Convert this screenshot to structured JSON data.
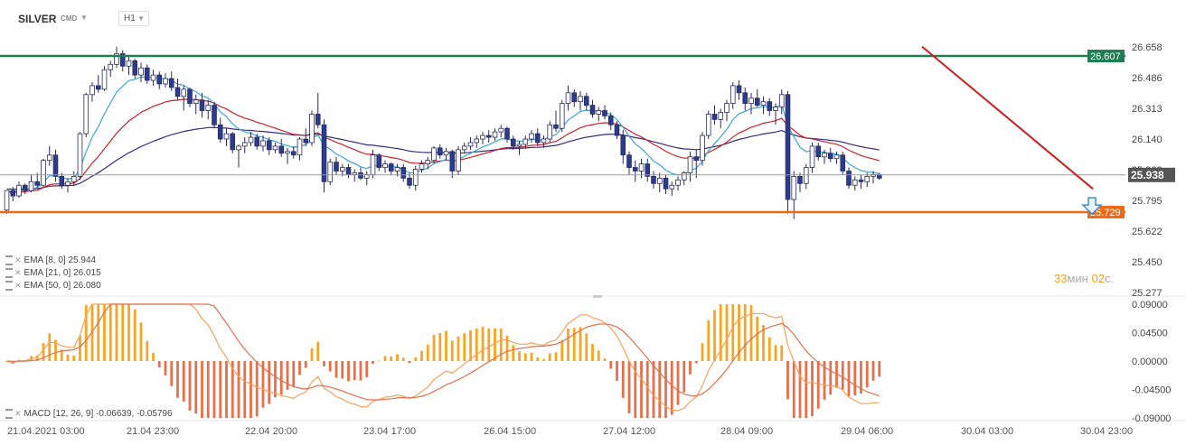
{
  "toolbar": {
    "symbol": "SILVER",
    "market": "CMD",
    "timeframe": "H1"
  },
  "colors": {
    "bull": "#ffffff",
    "bear": "#2b3c8f",
    "resistance": "#1e7f55",
    "support": "#f06a14",
    "trend": "#c81e1e",
    "ema8": "#3aa6d9",
    "ema21": "#c8232c",
    "ema50": "#3c2a7a",
    "macd_pos": "#f5a623",
    "macd_neg": "#e5704b",
    "price_line": "#999999"
  },
  "levels": {
    "resistance": "26.607",
    "support": "25.729",
    "current": "25.938"
  },
  "indicators": [
    {
      "name": "EMA",
      "params": "[8, 0]",
      "value": "25.944"
    },
    {
      "name": "EMA",
      "params": "[21, 0]",
      "value": "26.015"
    },
    {
      "name": "EMA",
      "params": "[50, 0]",
      "value": "26.080"
    }
  ],
  "macd_label": {
    "name": "MACD",
    "params": "[12, 26, 9]",
    "values": "-0.06639, -0.05796"
  },
  "timer": {
    "minutes": "33",
    "min_unit": "мин",
    "seconds": "02",
    "sec_unit": "с."
  },
  "chart_data": [
    {
      "type": "candlestick",
      "title": "SILVER H1",
      "price_axis_ticks": [
        "26.658",
        "26.486",
        "26.313",
        "26.140",
        "25.968",
        "25.795",
        "25.622",
        "25.450",
        "25.277"
      ],
      "ylim": [
        25.277,
        26.658
      ],
      "time_axis_ticks": [
        "21.04.2021  03:00",
        "21.04  23:00",
        "22.04  20:00",
        "23.04  17:00",
        "26.04  15:00",
        "27.04  12:00",
        "28.04  09:00",
        "29.04  06:00",
        "30.04  03:00",
        "30.04  23:00"
      ],
      "horizontal_levels": [
        26.607,
        25.729
      ],
      "current_price": 25.938,
      "trendline": {
        "from": [
          150,
          26.66
        ],
        "to": [
          178,
          25.86
        ]
      },
      "signal": "down",
      "candles": [
        [
          25.74,
          25.85,
          25.72,
          25.85
        ],
        [
          25.85,
          25.87,
          25.79,
          25.82
        ],
        [
          25.82,
          25.9,
          25.81,
          25.88
        ],
        [
          25.88,
          25.89,
          25.83,
          25.85
        ],
        [
          25.85,
          25.94,
          25.84,
          25.9
        ],
        [
          25.9,
          25.95,
          25.86,
          25.88
        ],
        [
          25.88,
          26.03,
          25.87,
          26.02
        ],
        [
          26.02,
          26.1,
          25.99,
          26.05
        ],
        [
          26.05,
          26.08,
          25.9,
          25.93
        ],
        [
          25.93,
          25.95,
          25.86,
          25.88
        ],
        [
          25.88,
          25.92,
          25.84,
          25.9
        ],
        [
          25.9,
          25.96,
          25.88,
          25.93
        ],
        [
          25.93,
          26.18,
          25.91,
          26.17
        ],
        [
          26.17,
          26.4,
          26.15,
          26.39
        ],
        [
          26.39,
          26.46,
          26.35,
          26.44
        ],
        [
          26.44,
          26.5,
          26.4,
          26.42
        ],
        [
          26.42,
          26.55,
          26.41,
          26.53
        ],
        [
          26.53,
          26.58,
          26.49,
          26.56
        ],
        [
          26.56,
          26.66,
          26.54,
          26.62
        ],
        [
          26.62,
          26.64,
          26.52,
          26.55
        ],
        [
          26.55,
          26.6,
          26.5,
          26.58
        ],
        [
          26.58,
          26.59,
          26.48,
          26.5
        ],
        [
          26.5,
          26.57,
          26.46,
          26.54
        ],
        [
          26.54,
          26.56,
          26.45,
          26.47
        ],
        [
          26.47,
          26.53,
          26.44,
          26.5
        ],
        [
          26.5,
          26.52,
          26.42,
          26.45
        ],
        [
          26.45,
          26.51,
          26.43,
          26.48
        ],
        [
          26.48,
          26.52,
          26.41,
          26.43
        ],
        [
          26.43,
          26.48,
          26.36,
          26.38
        ],
        [
          26.38,
          26.44,
          26.3,
          26.42
        ],
        [
          26.42,
          26.43,
          26.32,
          26.34
        ],
        [
          26.34,
          26.39,
          26.28,
          26.36
        ],
        [
          26.36,
          26.4,
          26.26,
          26.3
        ],
        [
          26.3,
          26.36,
          26.25,
          26.33
        ],
        [
          26.33,
          26.35,
          26.2,
          26.22
        ],
        [
          26.22,
          26.26,
          26.12,
          26.14
        ],
        [
          26.14,
          26.2,
          26.1,
          26.17
        ],
        [
          26.17,
          26.18,
          26.06,
          26.08
        ],
        [
          26.08,
          26.11,
          25.98,
          26.1
        ],
        [
          26.1,
          26.15,
          26.06,
          26.12
        ],
        [
          26.12,
          26.18,
          26.1,
          26.15
        ],
        [
          26.15,
          26.17,
          26.08,
          26.1
        ],
        [
          26.1,
          26.16,
          26.07,
          26.13
        ],
        [
          26.13,
          26.15,
          26.05,
          26.08
        ],
        [
          26.08,
          26.12,
          26.06,
          26.1
        ],
        [
          26.1,
          26.14,
          26.04,
          26.06
        ],
        [
          26.06,
          26.09,
          26.0,
          26.07
        ],
        [
          26.07,
          26.1,
          26.03,
          26.05
        ],
        [
          26.05,
          26.15,
          26.02,
          26.14
        ],
        [
          26.14,
          26.2,
          26.1,
          26.12
        ],
        [
          26.12,
          26.3,
          26.1,
          26.28
        ],
        [
          26.28,
          26.4,
          26.2,
          26.22
        ],
        [
          26.22,
          26.25,
          25.84,
          25.9
        ],
        [
          25.9,
          26.03,
          25.88,
          26.01
        ],
        [
          26.01,
          26.04,
          25.94,
          25.96
        ],
        [
          25.96,
          26.0,
          25.93,
          25.98
        ],
        [
          25.98,
          26.0,
          25.92,
          25.94
        ],
        [
          25.94,
          25.97,
          25.9,
          25.95
        ],
        [
          25.95,
          25.98,
          25.91,
          25.92
        ],
        [
          25.92,
          25.96,
          25.88,
          25.94
        ],
        [
          25.94,
          26.08,
          25.92,
          26.05
        ],
        [
          26.05,
          26.06,
          25.96,
          25.98
        ],
        [
          25.98,
          26.02,
          25.95,
          26.0
        ],
        [
          26.0,
          26.01,
          25.94,
          25.96
        ],
        [
          25.96,
          26.0,
          25.93,
          25.98
        ],
        [
          25.98,
          26.0,
          25.9,
          25.92
        ],
        [
          25.92,
          25.95,
          25.86,
          25.88
        ],
        [
          25.88,
          25.99,
          25.85,
          25.97
        ],
        [
          25.97,
          26.02,
          25.95,
          26.0
        ],
        [
          26.0,
          26.04,
          25.97,
          26.02
        ],
        [
          26.02,
          26.1,
          26.0,
          26.09
        ],
        [
          26.09,
          26.11,
          26.03,
          26.05
        ],
        [
          26.05,
          26.09,
          26.02,
          26.07
        ],
        [
          26.07,
          26.08,
          25.92,
          25.96
        ],
        [
          25.96,
          26.1,
          25.94,
          26.08
        ],
        [
          26.08,
          26.12,
          26.06,
          26.1
        ],
        [
          26.1,
          26.15,
          26.08,
          26.12
        ],
        [
          26.12,
          26.16,
          26.09,
          26.14
        ],
        [
          26.14,
          26.18,
          26.11,
          26.16
        ],
        [
          26.16,
          26.19,
          26.12,
          26.15
        ],
        [
          26.15,
          26.2,
          26.13,
          26.18
        ],
        [
          26.18,
          26.22,
          26.15,
          26.2
        ],
        [
          26.2,
          26.21,
          26.12,
          26.14
        ],
        [
          26.14,
          26.16,
          26.08,
          26.1
        ],
        [
          26.1,
          26.13,
          26.05,
          26.11
        ],
        [
          26.11,
          26.16,
          26.09,
          26.14
        ],
        [
          26.14,
          26.19,
          26.12,
          26.17
        ],
        [
          26.17,
          26.2,
          26.1,
          26.12
        ],
        [
          26.12,
          26.16,
          26.09,
          26.14
        ],
        [
          26.14,
          26.24,
          26.12,
          26.22
        ],
        [
          26.22,
          26.3,
          26.18,
          26.2
        ],
        [
          26.2,
          26.36,
          26.18,
          26.34
        ],
        [
          26.34,
          26.44,
          26.3,
          26.4
        ],
        [
          26.4,
          26.42,
          26.32,
          26.35
        ],
        [
          26.35,
          26.41,
          26.3,
          26.38
        ],
        [
          26.38,
          26.4,
          26.3,
          26.33
        ],
        [
          26.33,
          26.36,
          26.26,
          26.28
        ],
        [
          26.28,
          26.32,
          26.24,
          26.3
        ],
        [
          26.3,
          26.33,
          26.25,
          26.27
        ],
        [
          26.27,
          26.29,
          26.19,
          26.22
        ],
        [
          26.22,
          26.24,
          26.14,
          26.16
        ],
        [
          26.16,
          26.19,
          26.0,
          26.05
        ],
        [
          26.05,
          26.07,
          25.94,
          25.98
        ],
        [
          25.98,
          26.02,
          25.9,
          25.96
        ],
        [
          25.96,
          26.03,
          25.92,
          26.0
        ],
        [
          26.0,
          26.03,
          25.9,
          25.93
        ],
        [
          25.93,
          25.96,
          25.86,
          25.89
        ],
        [
          25.89,
          25.95,
          25.84,
          25.92
        ],
        [
          25.92,
          25.94,
          25.83,
          25.86
        ],
        [
          25.86,
          25.9,
          25.82,
          25.88
        ],
        [
          25.88,
          25.93,
          25.85,
          25.91
        ],
        [
          25.91,
          25.96,
          25.88,
          25.95
        ],
        [
          25.95,
          26.07,
          25.9,
          26.04
        ],
        [
          26.04,
          26.08,
          25.92,
          26.02
        ],
        [
          26.02,
          26.18,
          25.99,
          26.16
        ],
        [
          26.16,
          26.3,
          26.14,
          26.28
        ],
        [
          26.28,
          26.33,
          26.22,
          26.25
        ],
        [
          26.25,
          26.31,
          26.2,
          26.29
        ],
        [
          26.29,
          26.36,
          26.24,
          26.34
        ],
        [
          26.34,
          26.46,
          26.31,
          26.44
        ],
        [
          26.44,
          26.47,
          26.36,
          26.4
        ],
        [
          26.4,
          26.43,
          26.3,
          26.34
        ],
        [
          26.34,
          26.4,
          26.28,
          26.37
        ],
        [
          26.37,
          26.42,
          26.32,
          26.33
        ],
        [
          26.33,
          26.38,
          26.28,
          26.35
        ],
        [
          26.35,
          26.37,
          26.27,
          26.3
        ],
        [
          26.3,
          26.34,
          26.22,
          26.32
        ],
        [
          26.32,
          26.42,
          26.28,
          26.39
        ],
        [
          26.39,
          26.41,
          25.72,
          25.8
        ],
        [
          25.8,
          25.96,
          25.69,
          25.93
        ],
        [
          25.93,
          25.95,
          25.84,
          25.89
        ],
        [
          25.89,
          26.0,
          25.86,
          25.98
        ],
        [
          25.98,
          26.12,
          25.95,
          26.1
        ],
        [
          26.1,
          26.12,
          26.02,
          26.04
        ],
        [
          26.04,
          26.08,
          26.0,
          26.06
        ],
        [
          26.06,
          26.09,
          26.01,
          26.03
        ],
        [
          26.03,
          26.07,
          26.0,
          26.05
        ],
        [
          26.05,
          26.07,
          25.94,
          25.96
        ],
        [
          25.96,
          25.98,
          25.86,
          25.88
        ],
        [
          25.88,
          25.93,
          25.85,
          25.91
        ],
        [
          25.91,
          25.94,
          25.86,
          25.9
        ],
        [
          25.9,
          25.95,
          25.87,
          25.93
        ],
        [
          25.93,
          25.96,
          25.89,
          25.94
        ],
        [
          25.94,
          25.95,
          25.91,
          25.92
        ]
      ],
      "ema": [
        {
          "name": "EMA [8, 0]",
          "value": 25.944
        },
        {
          "name": "EMA [21, 0]",
          "value": 26.015
        },
        {
          "name": "EMA [50, 0]",
          "value": 26.08
        }
      ]
    },
    {
      "type": "macd",
      "title": "MACD [12, 26, 9]",
      "values_shown": [
        -0.06639,
        -0.05796
      ],
      "axis_ticks": [
        "0.09000",
        "0.04500",
        "0.00000",
        "-0.04500",
        "-0.09000"
      ],
      "ylim": [
        -0.09,
        0.09
      ]
    }
  ]
}
